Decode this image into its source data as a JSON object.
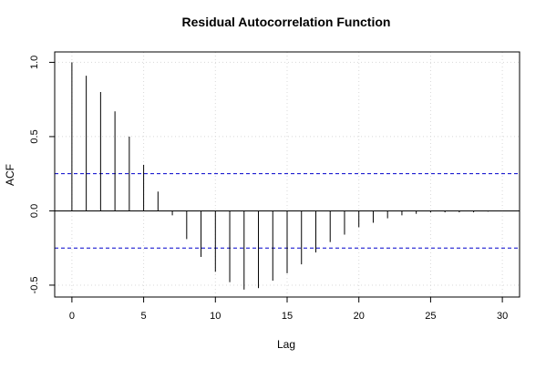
{
  "chart_data": {
    "type": "bar",
    "title": "Residual Autocorrelation Function",
    "xlabel": "Lag",
    "ylabel": "ACF",
    "xlim": [
      -1.2,
      31.2
    ],
    "ylim": [
      -0.58,
      1.07
    ],
    "x_ticks": [
      0,
      5,
      10,
      15,
      20,
      25,
      30
    ],
    "y_ticks": [
      -0.5,
      0.0,
      0.5,
      1.0
    ],
    "x_tick_labels": [
      "0",
      "5",
      "10",
      "15",
      "20",
      "25",
      "30"
    ],
    "y_tick_labels": [
      "-0.5",
      "0.0",
      "0.5",
      "1.0"
    ],
    "grid": true,
    "lags": [
      0,
      1,
      2,
      3,
      4,
      5,
      6,
      7,
      8,
      9,
      10,
      11,
      12,
      13,
      14,
      15,
      16,
      17,
      18,
      19,
      20,
      21,
      22,
      23,
      24,
      25,
      26,
      27,
      28,
      29,
      30
    ],
    "acf": [
      1.0,
      0.91,
      0.8,
      0.67,
      0.5,
      0.31,
      0.13,
      -0.03,
      -0.19,
      -0.31,
      -0.41,
      -0.48,
      -0.53,
      -0.52,
      -0.47,
      -0.42,
      -0.36,
      -0.28,
      -0.21,
      -0.16,
      -0.11,
      -0.08,
      -0.05,
      -0.03,
      -0.02,
      -0.01,
      -0.01,
      -0.01,
      -0.01,
      -0.005,
      0.0
    ],
    "confidence_bounds": [
      0.25,
      -0.25
    ],
    "colors": {
      "bars": "#000000",
      "bounds": "#0000cc",
      "grid": "#d8d8d8",
      "axis": "#000000"
    }
  }
}
